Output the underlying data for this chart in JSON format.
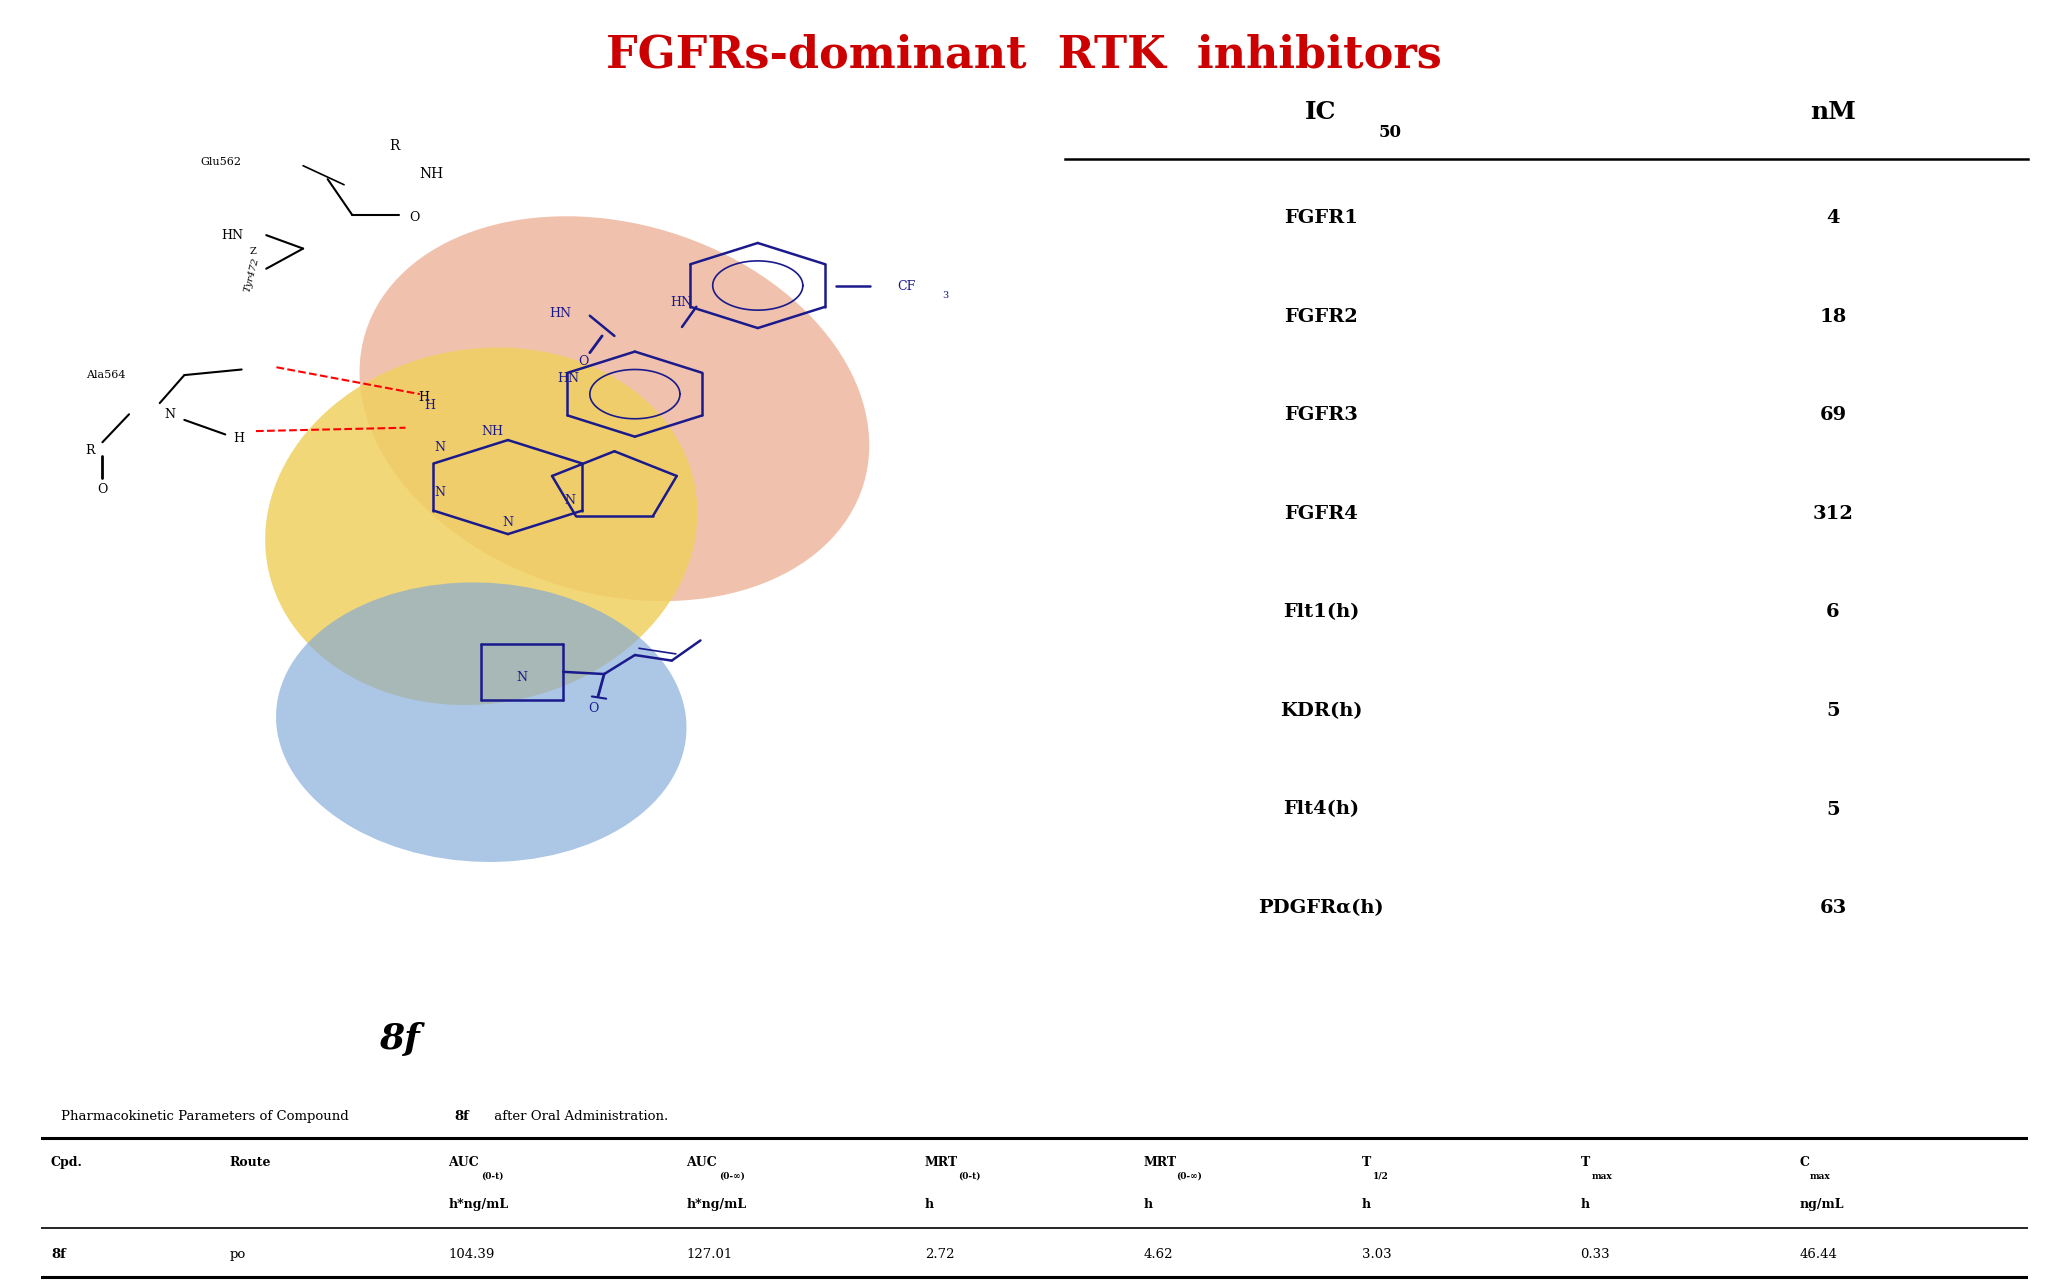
{
  "title": "FGFRs-dominant  RTK  inhibitors",
  "title_color": "#CC0000",
  "title_fontsize": 32,
  "ic50_rows": [
    [
      "FGFR1",
      "4"
    ],
    [
      "FGFR2",
      "18"
    ],
    [
      "FGFR3",
      "69"
    ],
    [
      "FGFR4",
      "312"
    ],
    [
      "Flt1(h)",
      "6"
    ],
    [
      "KDR(h)",
      "5"
    ],
    [
      "Flt4(h)",
      "5"
    ],
    [
      "PDGFRα(h)",
      "63"
    ]
  ],
  "compound_label": "8f",
  "pk_caption_normal": "Pharmacokinetic Parameters of Compound ",
  "pk_caption_bold": "8f",
  "pk_caption_end": " after Oral Administration.",
  "pk_data": [
    "8f",
    "po",
    "104.39",
    "127.01",
    "2.72",
    "4.62",
    "3.03",
    "0.33",
    "46.44"
  ],
  "bg_color": "#FFFFFF",
  "orange_color": "#E8A080",
  "yellow_color": "#F0D060",
  "blue_color": "#80A8D8",
  "mol_color": "#1a1a8c"
}
